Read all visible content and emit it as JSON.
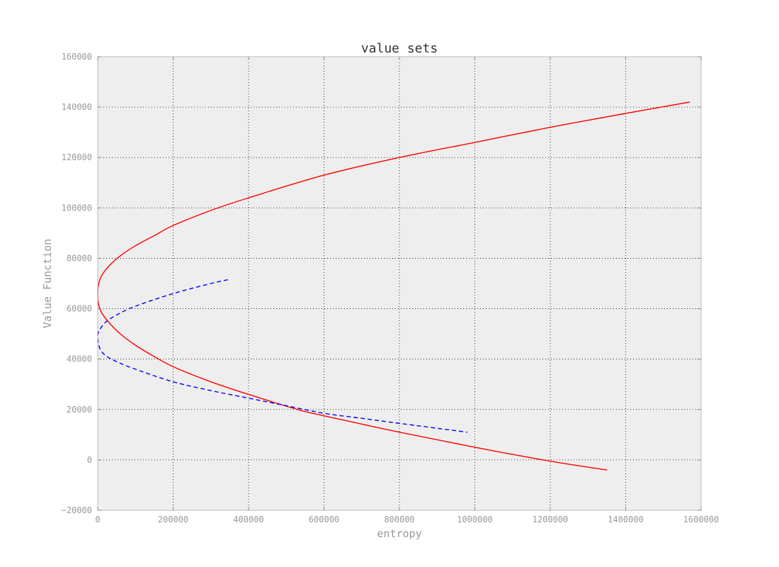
{
  "chart_data": {
    "type": "line",
    "title": "value sets",
    "xlabel": "entropy",
    "ylabel": "Value Function",
    "xlim": [
      0,
      1600000
    ],
    "ylim": [
      -20000,
      160000
    ],
    "xticks": [
      "0",
      "200000",
      "400000",
      "600000",
      "800000",
      "1000000",
      "1200000",
      "1400000",
      "1600000"
    ],
    "yticks": [
      "−20000",
      "0",
      "20000",
      "40000",
      "60000",
      "80000",
      "100000",
      "120000",
      "140000",
      "160000"
    ],
    "grid": true,
    "background": "#eeeeee",
    "series": [
      {
        "color": "#ff0000",
        "style": "solid",
        "x": [
          1570000,
          1400000,
          1200000,
          1000000,
          800000,
          600000,
          400000,
          300000,
          200000,
          150000,
          100000,
          60000,
          30000,
          10000,
          2000,
          0,
          2000,
          10000,
          30000,
          60000,
          100000,
          150000,
          200000,
          300000,
          400000,
          530000,
          600000,
          800000,
          1000000,
          1200000,
          1350000
        ],
        "y": [
          142000,
          137500,
          132000,
          126000,
          120000,
          113000,
          104000,
          99000,
          93000,
          89000,
          85000,
          81000,
          77000,
          73000,
          69500,
          66000,
          62000,
          58500,
          54500,
          50000,
          45500,
          41000,
          37000,
          31000,
          26000,
          20000,
          17500,
          11000,
          5000,
          -500,
          -4000
        ]
      },
      {
        "color": "#0000ff",
        "style": "dashed",
        "x": [
          345000,
          300000,
          200000,
          100000,
          50000,
          20000,
          5000,
          0,
          5000,
          20000,
          50000,
          100000,
          200000,
          300000,
          400000,
          500000,
          600000,
          700000,
          800000,
          980000
        ],
        "y": [
          71500,
          70000,
          66000,
          61000,
          57500,
          54500,
          51500,
          49000,
          44500,
          41500,
          39000,
          36000,
          31000,
          27500,
          24500,
          21500,
          18500,
          16500,
          14500,
          11000
        ]
      }
    ]
  }
}
